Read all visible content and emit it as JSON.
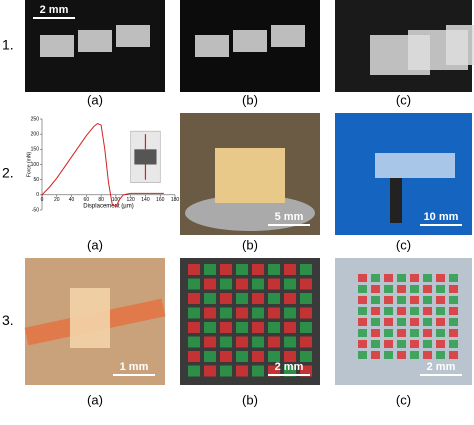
{
  "rows": [
    {
      "label": "1.",
      "panels": [
        {
          "caption": "(a)",
          "scale_bar": "2 mm"
        },
        {
          "caption": "(b)"
        },
        {
          "caption": "(c)"
        }
      ]
    },
    {
      "label": "2.",
      "panels": [
        {
          "caption": "(a)",
          "chart": {
            "type": "line",
            "y_label": "Force (mN)",
            "x_label": "Displacement (µm)",
            "color": "#d62020",
            "x": [
              0,
              10,
              20,
              30,
              40,
              50,
              60,
              70,
              75,
              80,
              85,
              90,
              95,
              100,
              105,
              110,
              120,
              140,
              160,
              165
            ],
            "values": [
              0,
              25,
              55,
              90,
              125,
              160,
              195,
              225,
              235,
              230,
              150,
              40,
              -30,
              -40,
              -15,
              0,
              5,
              5,
              5,
              5
            ],
            "xlim": [
              0,
              180
            ],
            "ylim": [
              -50,
              250
            ],
            "xticks": [
              0,
              20,
              40,
              60,
              80,
              100,
              120,
              140,
              160,
              180
            ],
            "yticks": [
              -50,
              0,
              50,
              100,
              150,
              200,
              250
            ]
          }
        },
        {
          "caption": "(b)",
          "scale_bar": "5 mm"
        },
        {
          "caption": "(c)",
          "scale_bar": "10 mm"
        }
      ]
    },
    {
      "label": "3.",
      "panels": [
        {
          "caption": "(a)",
          "scale_bar": "1 mm"
        },
        {
          "caption": "(b)",
          "scale_bar": "2 mm"
        },
        {
          "caption": "(c)",
          "scale_bar": "2 mm"
        }
      ]
    }
  ]
}
